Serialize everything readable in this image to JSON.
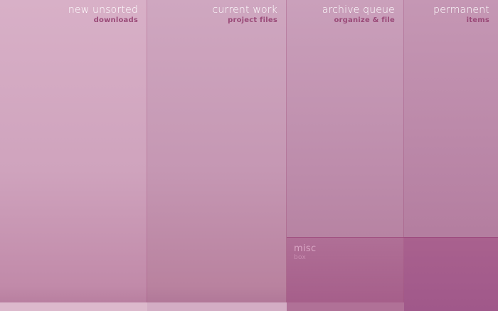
{
  "columns": [
    {
      "title": "new unsorted",
      "subtitle": "downloads"
    },
    {
      "title": "current work",
      "subtitle": "project files"
    },
    {
      "title": "archive queue",
      "subtitle": "organize & file"
    },
    {
      "title": "permanent",
      "subtitle": "items"
    }
  ],
  "misc": {
    "title": "misc",
    "subtitle": "box"
  },
  "colors": {
    "header_text": "#ffffff",
    "subtitle_text": "#9a4a78",
    "accent": "#a9618e"
  }
}
